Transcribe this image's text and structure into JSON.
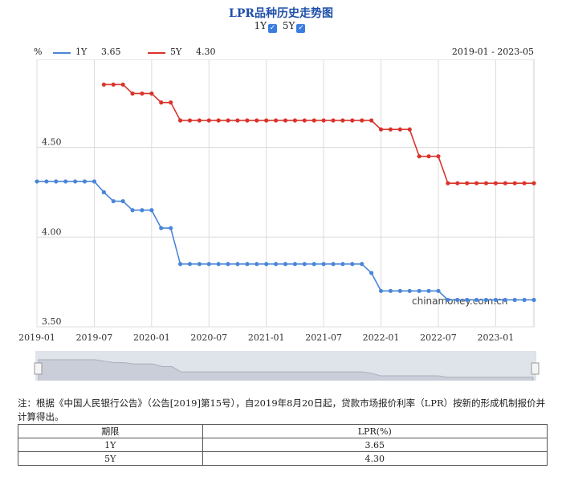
{
  "title": "LPR品种历史走势图",
  "toggles": [
    {
      "label": "1Y",
      "checked": true
    },
    {
      "label": "5Y",
      "checked": true
    }
  ],
  "unit": "%",
  "legend": [
    {
      "name": "1Y",
      "value": "3.65",
      "color": "#4a86d8"
    },
    {
      "name": "5Y",
      "value": "4.30",
      "color": "#d9342b"
    }
  ],
  "date_range": "2019-01 - 2023-05",
  "watermark": "chinamoney.com.cn",
  "note": "注：根据《中国人民银行公告》（公告[2019]第15号），自2019年8月20日起，贷款市场报价利率（LPR）按新的形成机制报价并计算得出。",
  "table": {
    "headers": [
      "期限",
      "LPR(%)"
    ],
    "rows": [
      [
        "1Y",
        "3.65"
      ],
      [
        "5Y",
        "4.30"
      ]
    ]
  },
  "chart_data": {
    "type": "line",
    "x_start": "2019-01",
    "x_end": "2023-05",
    "xticks": [
      "2019-01",
      "2019-07",
      "2020-01",
      "2020-07",
      "2021-01",
      "2021-07",
      "2022-01",
      "2022-07",
      "2023-01"
    ],
    "yticks": [
      "3.50",
      "4.00",
      "4.50"
    ],
    "ylim": [
      3.5,
      4.99
    ],
    "series": [
      {
        "name": "1Y",
        "color": "#4a86d8",
        "x": [
          "2019-01",
          "2019-02",
          "2019-03",
          "2019-04",
          "2019-05",
          "2019-06",
          "2019-07",
          "2019-08",
          "2019-09",
          "2019-10",
          "2019-11",
          "2019-12",
          "2020-01",
          "2020-02",
          "2020-03",
          "2020-04",
          "2020-05",
          "2020-06",
          "2020-07",
          "2020-08",
          "2020-09",
          "2020-10",
          "2020-11",
          "2020-12",
          "2021-01",
          "2021-02",
          "2021-03",
          "2021-04",
          "2021-05",
          "2021-06",
          "2021-07",
          "2021-08",
          "2021-09",
          "2021-10",
          "2021-11",
          "2021-12",
          "2022-01",
          "2022-02",
          "2022-03",
          "2022-04",
          "2022-05",
          "2022-06",
          "2022-07",
          "2022-08",
          "2022-09",
          "2022-10",
          "2022-11",
          "2022-12",
          "2023-01",
          "2023-02",
          "2023-03",
          "2023-04",
          "2023-05"
        ],
        "values": [
          4.31,
          4.31,
          4.31,
          4.31,
          4.31,
          4.31,
          4.31,
          4.25,
          4.2,
          4.2,
          4.15,
          4.15,
          4.15,
          4.05,
          4.05,
          3.85,
          3.85,
          3.85,
          3.85,
          3.85,
          3.85,
          3.85,
          3.85,
          3.85,
          3.85,
          3.85,
          3.85,
          3.85,
          3.85,
          3.85,
          3.85,
          3.85,
          3.85,
          3.85,
          3.85,
          3.8,
          3.7,
          3.7,
          3.7,
          3.7,
          3.7,
          3.7,
          3.7,
          3.65,
          3.65,
          3.65,
          3.65,
          3.65,
          3.65,
          3.65,
          3.65,
          3.65,
          3.65
        ]
      },
      {
        "name": "5Y",
        "color": "#d9342b",
        "x": [
          "2019-08",
          "2019-09",
          "2019-10",
          "2019-11",
          "2019-12",
          "2020-01",
          "2020-02",
          "2020-03",
          "2020-04",
          "2020-05",
          "2020-06",
          "2020-07",
          "2020-08",
          "2020-09",
          "2020-10",
          "2020-11",
          "2020-12",
          "2021-01",
          "2021-02",
          "2021-03",
          "2021-04",
          "2021-05",
          "2021-06",
          "2021-07",
          "2021-08",
          "2021-09",
          "2021-10",
          "2021-11",
          "2021-12",
          "2022-01",
          "2022-02",
          "2022-03",
          "2022-04",
          "2022-05",
          "2022-06",
          "2022-07",
          "2022-08",
          "2022-09",
          "2022-10",
          "2022-11",
          "2022-12",
          "2023-01",
          "2023-02",
          "2023-03",
          "2023-04",
          "2023-05"
        ],
        "values": [
          4.85,
          4.85,
          4.85,
          4.8,
          4.8,
          4.8,
          4.75,
          4.75,
          4.65,
          4.65,
          4.65,
          4.65,
          4.65,
          4.65,
          4.65,
          4.65,
          4.65,
          4.65,
          4.65,
          4.65,
          4.65,
          4.65,
          4.65,
          4.65,
          4.65,
          4.65,
          4.65,
          4.65,
          4.65,
          4.6,
          4.6,
          4.6,
          4.6,
          4.45,
          4.45,
          4.45,
          4.3,
          4.3,
          4.3,
          4.3,
          4.3,
          4.3,
          4.3,
          4.3,
          4.3,
          4.3
        ]
      }
    ],
    "grid": true,
    "legend_position": "top-left"
  }
}
